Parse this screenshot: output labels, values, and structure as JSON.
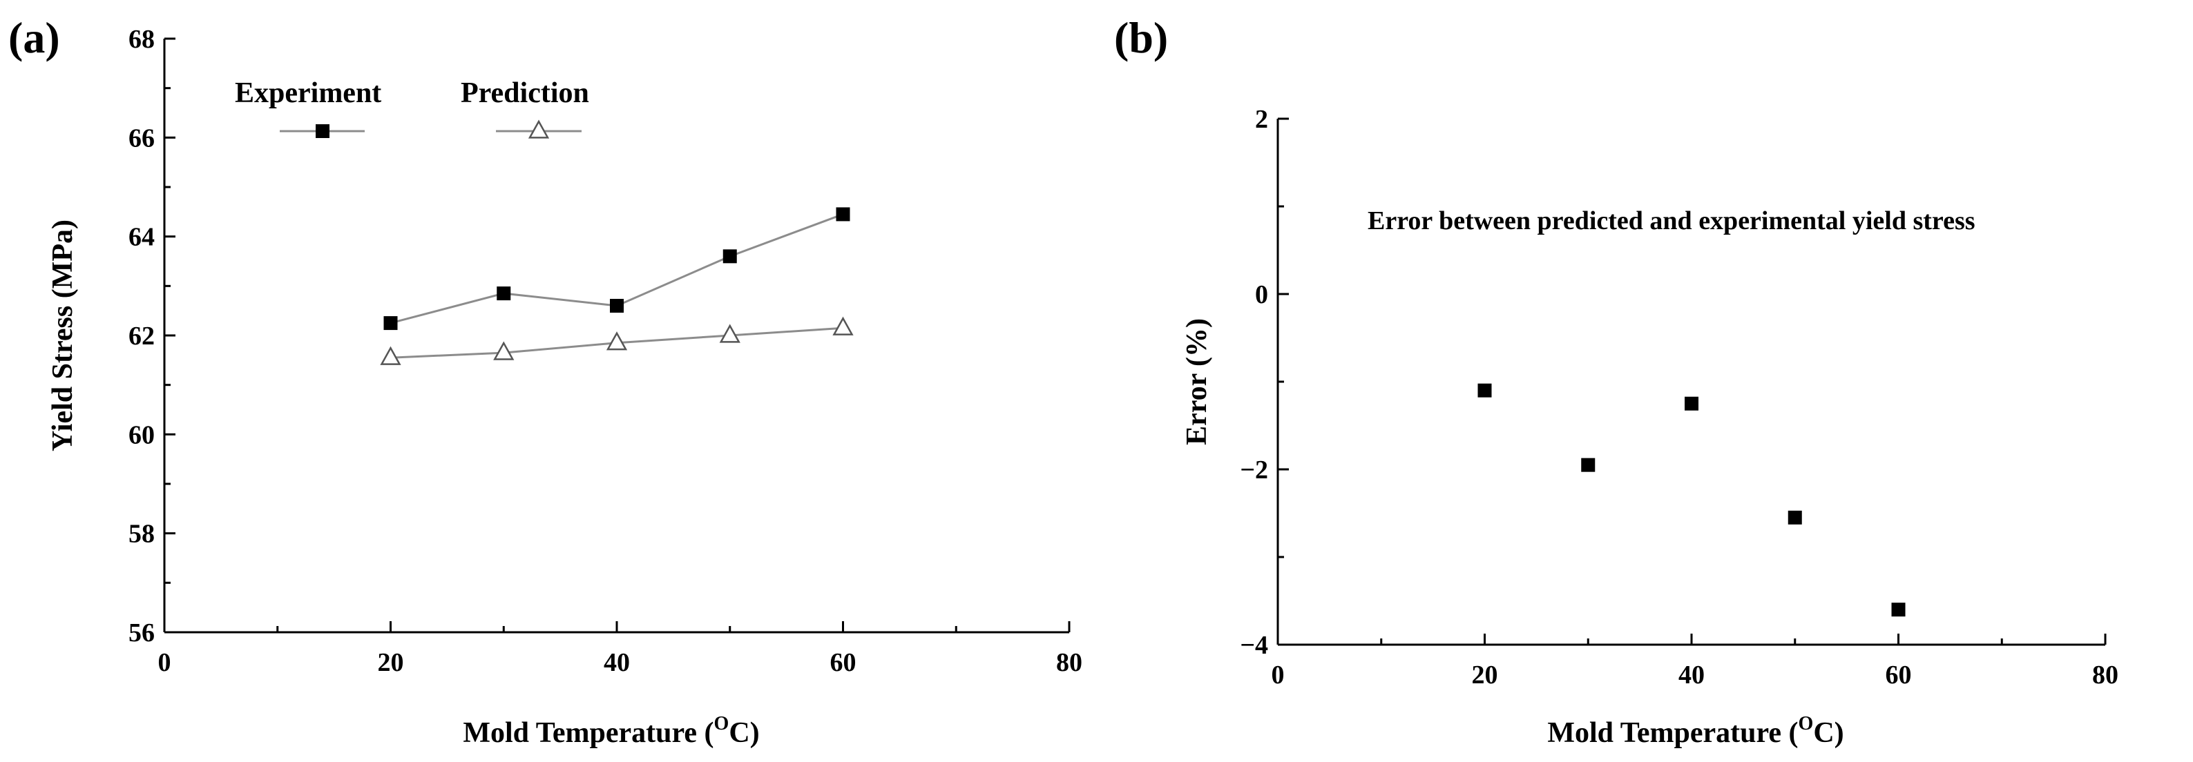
{
  "chart_data": [
    {
      "panel": "(a)",
      "type": "line",
      "xlabel_main": "Mold Temperature (",
      "xlabel_sup": "O",
      "xlabel_end": "C)",
      "ylabel": "Yield Stress (MPa)",
      "xlim": [
        0,
        80
      ],
      "ylim": [
        56,
        68
      ],
      "xticks": [
        0,
        20,
        40,
        60,
        80
      ],
      "yticks": [
        56,
        58,
        60,
        62,
        64,
        66,
        68
      ],
      "legend_position": "top-left",
      "series": [
        {
          "name": "Experiment",
          "marker": "filled-square",
          "x": [
            20,
            30,
            40,
            50,
            60
          ],
          "y": [
            62.25,
            62.85,
            62.6,
            63.6,
            64.45
          ]
        },
        {
          "name": "Prediction",
          "marker": "open-triangle",
          "x": [
            20,
            30,
            40,
            50,
            60
          ],
          "y": [
            61.55,
            61.65,
            61.85,
            62.0,
            62.15
          ]
        }
      ]
    },
    {
      "panel": "(b)",
      "type": "scatter",
      "xlabel_main": "Mold Temperature (",
      "xlabel_sup": "O",
      "xlabel_end": "C)",
      "ylabel": "Error (%)",
      "xlim": [
        0,
        80
      ],
      "ylim": [
        -4,
        2
      ],
      "xticks": [
        0,
        20,
        40,
        60,
        80
      ],
      "yticks": [
        -4,
        -2,
        0,
        2
      ],
      "annotation": "Error between predicted and experimental yield stress",
      "series": [
        {
          "marker": "filled-square",
          "x": [
            20,
            30,
            40,
            50,
            60
          ],
          "y": [
            -1.1,
            -1.95,
            -1.25,
            -2.55,
            -3.6
          ]
        }
      ]
    }
  ]
}
